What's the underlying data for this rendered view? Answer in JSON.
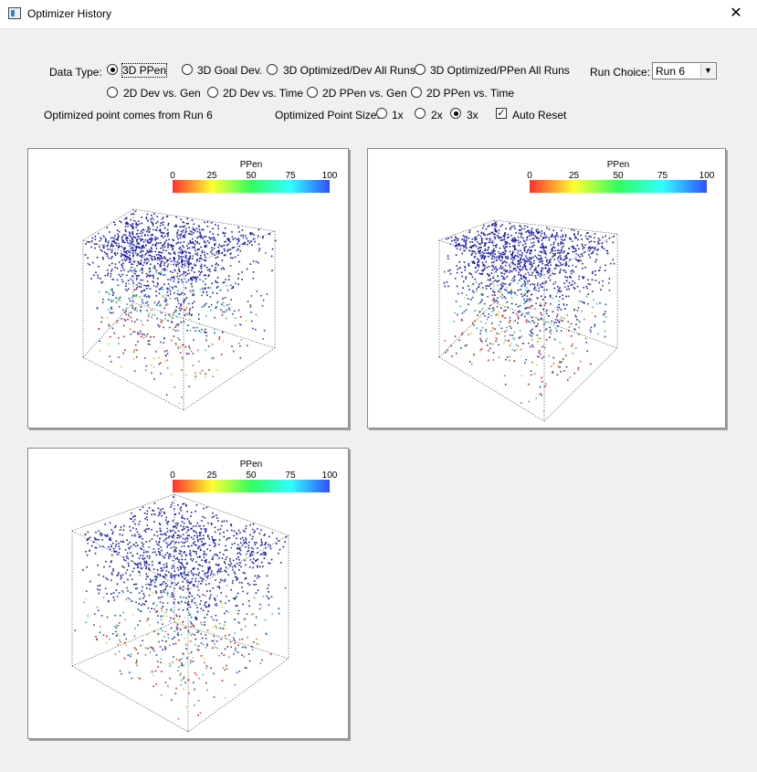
{
  "window": {
    "title": "Optimizer History",
    "close_glyph": "✕"
  },
  "controls": {
    "data_type_label": "Data Type:",
    "data_types": [
      {
        "label": "3D PPen",
        "selected": true
      },
      {
        "label": "3D Goal Dev.",
        "selected": false
      },
      {
        "label": "3D Optimized/Dev All Runs",
        "selected": false
      },
      {
        "label": "3D Optimized/PPen All Runs",
        "selected": false
      },
      {
        "label": "2D Dev vs. Gen",
        "selected": false
      },
      {
        "label": "2D Dev vs. Time",
        "selected": false
      },
      {
        "label": "2D PPen vs. Gen",
        "selected": false
      },
      {
        "label": "2D PPen vs. Time",
        "selected": false
      }
    ],
    "run_choice_label": "Run Choice:",
    "run_choice_value": "Run 6",
    "optimized_note": "Optimized point comes from Run 6",
    "point_size_label": "Optimized Point Size:",
    "point_sizes": [
      {
        "label": "1x",
        "selected": false
      },
      {
        "label": "2x",
        "selected": false
      },
      {
        "label": "3x",
        "selected": true
      }
    ],
    "auto_reset_label": "Auto Reset",
    "auto_reset_checked": true
  },
  "plots": [
    {
      "colorbar_title": "PPen",
      "ticks": [
        "0",
        "25",
        "50",
        "75",
        "100"
      ]
    },
    {
      "colorbar_title": "PPen",
      "ticks": [
        "0",
        "25",
        "50",
        "75",
        "100"
      ]
    },
    {
      "colorbar_title": "PPen",
      "ticks": [
        "0",
        "25",
        "50",
        "75",
        "100"
      ]
    }
  ],
  "colors": {
    "scale": [
      "#ff3030",
      "#ffff30",
      "#30ff60",
      "#30ffff",
      "#3050ff"
    ]
  }
}
